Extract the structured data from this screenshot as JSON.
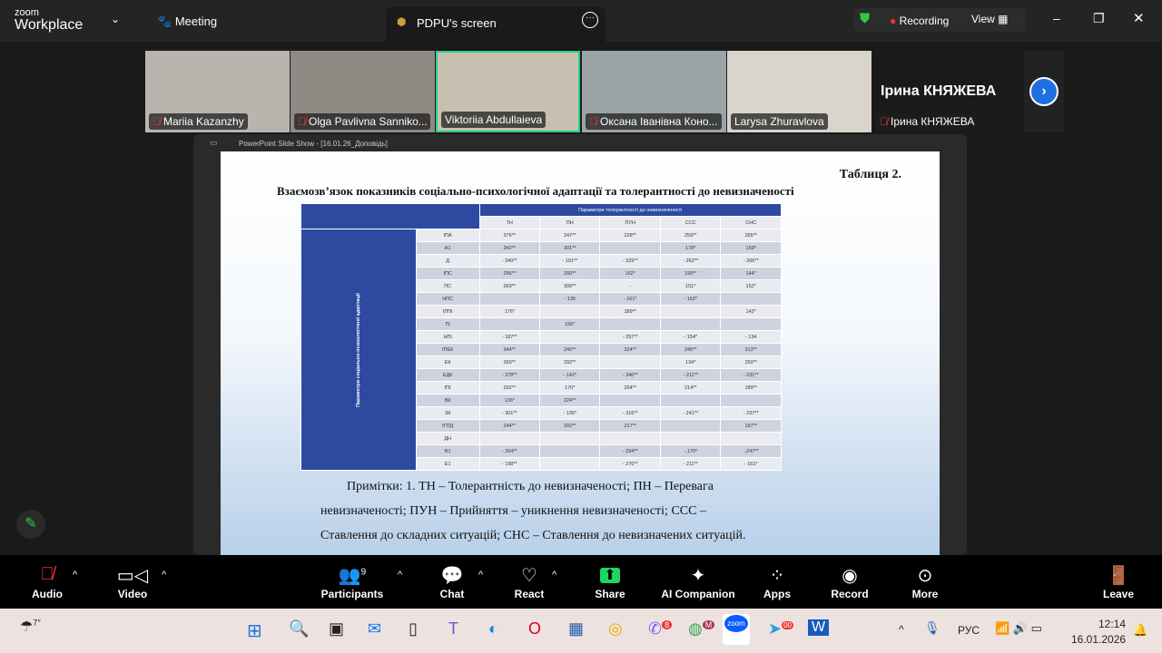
{
  "app": {
    "brand_top": "zoom",
    "brand_bottom": "Workplace",
    "meeting_label": "Meeting",
    "screen_tab": "PDPU's screen",
    "recording": "Recording",
    "view": "View"
  },
  "participants": [
    {
      "name": "Mariia Kazanzhy",
      "muted": true
    },
    {
      "name": "Olga Pavlivna Sanniko...",
      "muted": true
    },
    {
      "name": "Viktoriia Abdullaieva",
      "muted": false,
      "active": true
    },
    {
      "name": "Оксана Іванівна Коно...",
      "muted": true
    },
    {
      "name": "Larysa Zhuravlova",
      "muted": false
    },
    {
      "name": "Ірина КНЯЖЕВА",
      "muted": true,
      "big_name": "Ірина КНЯЖЕВА"
    }
  ],
  "share_window_title": "PowerPoint Slide Show - [16.01.26_Доповідь]",
  "slide": {
    "table_no": "Таблиця 2.",
    "title": "Взаємозв’язок показників соціально-психологічної адаптації та толерантності до невизначеності",
    "group_header": "Параметри толерантності до невизначеності",
    "side_label": "Параметри соціально-психологічної адаптації",
    "columns": [
      "ТН",
      "ПН",
      "ПУН",
      "ССС",
      "СНС"
    ],
    "rows": [
      [
        "ІПА",
        "376**",
        "247**",
        "228**",
        "259**",
        "265**"
      ],
      [
        "А1",
        "242**",
        "301**",
        "",
        "178*",
        "159*"
      ],
      [
        "Д",
        "- 340**",
        "- 191**",
        "- 329**",
        "- 262**",
        "- 266**"
      ],
      [
        "ІПС",
        "256**",
        "200**",
        "162*",
        "199**",
        "144*"
      ],
      [
        "ПС",
        "269**",
        "306**",
        "-",
        "151*",
        "152*"
      ],
      [
        "НПС",
        "",
        "- 135",
        "- 161*",
        "- 162*",
        ""
      ],
      [
        "ІППі",
        "176*",
        "",
        "189**",
        "",
        "142*"
      ],
      [
        "Пі",
        "",
        "156*",
        "",
        "",
        ""
      ],
      [
        "НПі",
        "- 187**",
        "",
        "- 257**",
        "- 154*",
        "- 134"
      ],
      [
        "ІПЕК",
        "344**",
        "240**",
        "324**",
        "245**",
        "313**"
      ],
      [
        "ЕК",
        "260**",
        "292**",
        "",
        "134*",
        "250**"
      ],
      [
        "ЕДК",
        "- 278**",
        "- 142*",
        "- 340**",
        "- 211**",
        "- 231**"
      ],
      [
        "ІПІ",
        "292**",
        "170*",
        "254**",
        "214**",
        "189**"
      ],
      [
        "ВК",
        "136*",
        "224**",
        "",
        "",
        ""
      ],
      [
        "ЗК",
        "- 301**",
        "- 135*",
        "- 316**",
        "- 241**",
        "- 237**"
      ],
      [
        "ІГПД",
        "244**",
        "202**",
        "217**",
        "",
        "197**"
      ],
      [
        "ДН",
        "",
        "",
        "",
        "",
        ""
      ],
      [
        "В1",
        "- 264**",
        "",
        "- 294**",
        "-,170*",
        "-,247**"
      ],
      [
        "Е1",
        "- 198**",
        "",
        "- 276**",
        "- 211**",
        "- 161*"
      ]
    ],
    "note_l1": "Примітки: 1. ТН – Толерантність до невизначеності; ПН – Перевага",
    "note_l2": "невизначеності; ПУН – Прийняття – уникнення невизначеності; ССС –",
    "note_l3": "Ставлення до складних ситуацій; СНС – Ставлення до невизначених ситуацій."
  },
  "toolbar": {
    "audio": "Audio",
    "video": "Video",
    "participants": "Participants",
    "participants_count": "9",
    "chat": "Chat",
    "react": "React",
    "share": "Share",
    "ai": "AI Companion",
    "apps": "Apps",
    "record": "Record",
    "more": "More",
    "leave": "Leave"
  },
  "taskbar": {
    "weather": "7°",
    "lang": "РУС",
    "time": "12:14",
    "date": "16.01.2026",
    "viber_badge": "8",
    "chrome_badge": "M",
    "telegram_badge": "00"
  },
  "colors": {
    "table_header": "#2d4aa0",
    "row_odd": "#e9ebf1",
    "row_even": "#cfd3e0",
    "share_green": "#1ed760",
    "active_border": "#23d18b"
  }
}
